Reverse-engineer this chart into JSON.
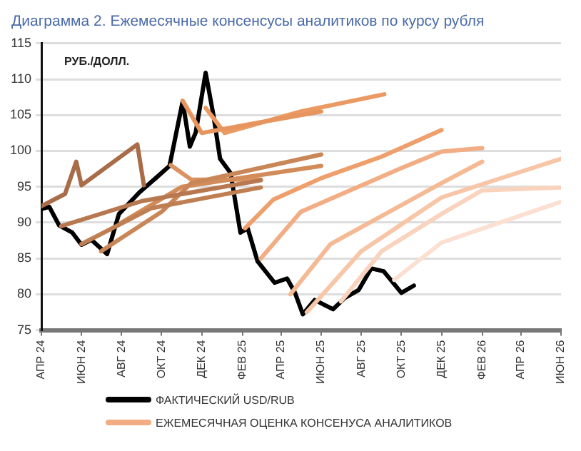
{
  "chart_data": {
    "type": "line",
    "title": "Диаграмма 2. Ежемесячные консенсусы аналитиков по курсу рубля",
    "ylabel": "РУБ./ДОЛЛ.",
    "xlim": [
      "2024-04-01",
      "2026-06-01"
    ],
    "xticks": [
      {
        "value": "2024-04-01",
        "label": "АПР 24"
      },
      {
        "value": "2024-06-01",
        "label": "ИЮН 24"
      },
      {
        "value": "2024-08-01",
        "label": "АВГ 24"
      },
      {
        "value": "2024-10-01",
        "label": "ОКТ 24"
      },
      {
        "value": "2024-12-01",
        "label": "ДЕК 24"
      },
      {
        "value": "2025-02-01",
        "label": "ФЕВ 25"
      },
      {
        "value": "2025-04-01",
        "label": "АПР 25"
      },
      {
        "value": "2025-06-01",
        "label": "ИЮН 25"
      },
      {
        "value": "2025-08-01",
        "label": "АВГ 25"
      },
      {
        "value": "2025-10-01",
        "label": "ОКТ 25"
      },
      {
        "value": "2025-12-01",
        "label": "ДЕК 25"
      },
      {
        "value": "2026-02-01",
        "label": "ФЕВ 26"
      },
      {
        "value": "2026-04-01",
        "label": "АПР 26"
      },
      {
        "value": "2026-06-01",
        "label": "ИЮН 26"
      }
    ],
    "ylim": [
      75,
      115
    ],
    "yticks": [
      75,
      80,
      85,
      90,
      95,
      100,
      105,
      110,
      115
    ],
    "grid": "y",
    "legend": "bottom",
    "marker": "none",
    "line_style": "solid",
    "series": [
      {
        "color": "#a86c48",
        "x": [
          "2024-04-01",
          "2024-05-07",
          "2024-05-24",
          "2024-06-01",
          "2024-08-25",
          "2024-09-04"
        ],
        "values": [
          92.3,
          94,
          98.5,
          95.2,
          100.9,
          95.2
        ]
      },
      {
        "color": "#b8784f",
        "x": [
          "2024-05-01",
          "2024-09-01",
          "2025-03-01"
        ],
        "values": [
          89.5,
          93,
          95.9
        ]
      },
      {
        "color": "#c07f52",
        "x": [
          "2024-06-01",
          "2024-09-15",
          "2025-03-01"
        ],
        "values": [
          87,
          92,
          94.9
        ]
      },
      {
        "color": "#c98656",
        "x": [
          "2024-07-01",
          "2024-10-01",
          "2024-11-15",
          "2025-06-01"
        ],
        "values": [
          86,
          91.5,
          95.5,
          99.5
        ]
      },
      {
        "color": "#d28c5a",
        "x": [
          "2024-08-01",
          "2024-11-01",
          "2025-06-01"
        ],
        "values": [
          90,
          95,
          97.9
        ]
      },
      {
        "color": "#dc9260",
        "x": [
          "2024-10-15",
          "2024-11-15",
          "2025-03-01"
        ],
        "values": [
          98,
          96,
          96
        ]
      },
      {
        "color": "#e6955e",
        "x": [
          "2024-11-02",
          "2024-12-01",
          "2025-03-01",
          "2025-06-01"
        ],
        "values": [
          107,
          102.5,
          104,
          105.5
        ]
      },
      {
        "color": "#eb9a63",
        "x": [
          "2024-12-07",
          "2025-01-05",
          "2025-05-01",
          "2025-09-05"
        ],
        "values": [
          106,
          102.5,
          105.5,
          107.9
        ]
      },
      {
        "color": "#ee9f6c",
        "x": [
          "2025-02-05",
          "2025-03-20",
          "2025-06-01",
          "2025-09-01",
          "2025-12-01"
        ],
        "values": [
          89.2,
          93.2,
          96.2,
          99.2,
          102.9
        ]
      },
      {
        "name": "ЕЖЕМЕСЯЧНАЯ ОЦЕНКА КОНСЕНУСА АНАЛИТИКОВ",
        "color": "#f2ad84",
        "x": [
          "2025-03-01",
          "2025-05-01",
          "2025-10-01",
          "2025-12-01",
          "2026-02-01"
        ],
        "values": [
          85,
          91.5,
          97.6,
          99.9,
          100.4
        ]
      },
      {
        "color": "#f5b994",
        "x": [
          "2025-04-15",
          "2025-06-15",
          "2025-12-01",
          "2026-02-01"
        ],
        "values": [
          80,
          87,
          95.5,
          98.5
        ]
      },
      {
        "color": "#f7c6a7",
        "x": [
          "2025-05-10",
          "2025-08-01",
          "2025-12-01",
          "2026-06-01"
        ],
        "values": [
          77.5,
          86,
          93.5,
          98.9
        ]
      },
      {
        "color": "#f9d3bd",
        "x": [
          "2025-07-01",
          "2025-09-01",
          "2025-12-01",
          "2026-02-01",
          "2026-06-01"
        ],
        "values": [
          79,
          86,
          91.2,
          94.5,
          94.9
        ]
      },
      {
        "color": "#fbe0d2",
        "x": [
          "2025-09-20",
          "2025-12-01",
          "2026-06-01"
        ],
        "values": [
          82,
          87.2,
          92.9
        ]
      },
      {
        "name": "ФАКТИЧЕСКИЙ USD/RUB",
        "color": "#000000",
        "x": [
          "2024-04-01",
          "2024-04-13",
          "2024-04-28",
          "2024-05-18",
          "2024-06-01",
          "2024-06-16",
          "2024-07-10",
          "2024-07-28",
          "2024-08-28",
          "2024-09-22",
          "2024-10-13",
          "2024-11-02",
          "2024-11-13",
          "2024-11-22",
          "2024-12-07",
          "2024-12-19",
          "2024-12-29",
          "2025-01-14",
          "2025-01-29",
          "2025-02-09",
          "2025-02-24",
          "2025-03-22",
          "2025-04-10",
          "2025-04-22",
          "2025-05-04",
          "2025-05-22",
          "2025-06-19",
          "2025-07-07",
          "2025-07-28",
          "2025-08-16",
          "2025-09-04",
          "2025-10-01",
          "2025-10-20"
        ],
        "values": [
          91.9,
          92.2,
          89.6,
          88.6,
          86.9,
          87.6,
          85.6,
          91.2,
          94.2,
          96.2,
          97.9,
          106.9,
          100.6,
          102.6,
          110.9,
          104.9,
          98.9,
          96.9,
          88.6,
          89.2,
          84.6,
          81.6,
          82.2,
          80.2,
          77.2,
          79.2,
          77.9,
          79.5,
          80.6,
          83.6,
          83.2,
          80.2,
          81.2
        ]
      }
    ]
  }
}
